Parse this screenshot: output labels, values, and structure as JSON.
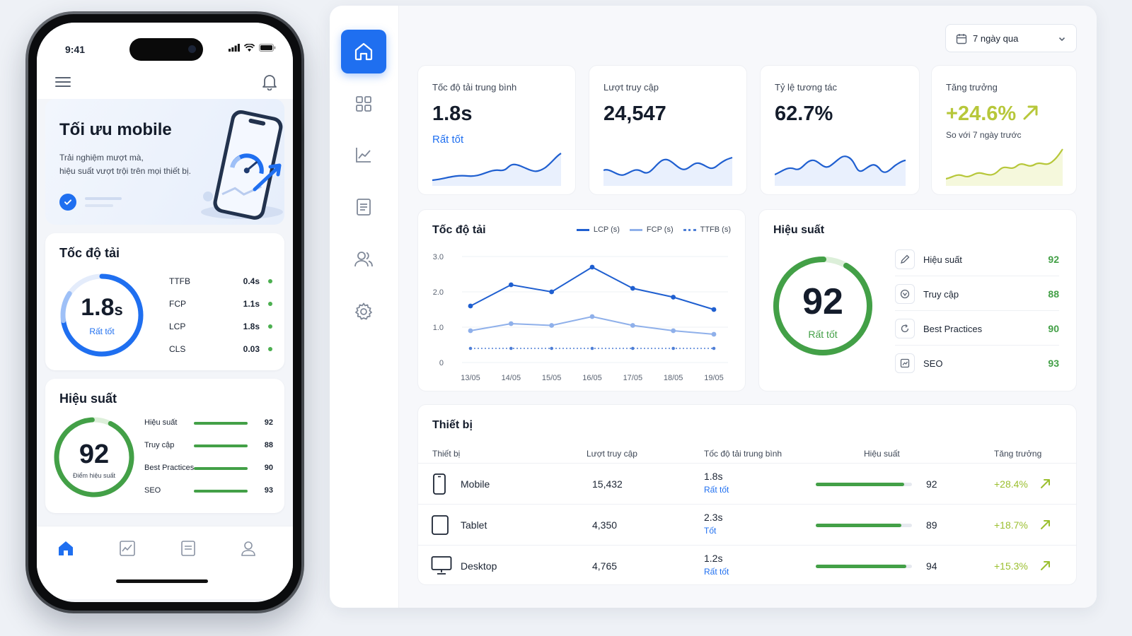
{
  "phone": {
    "status_time": "9:41",
    "hero": {
      "title": "Tối ưu mobile",
      "subtitle_line1": "Trải nghiệm mượt mà,",
      "subtitle_line2": "hiệu suất vượt trội trên mọi thiết bị."
    },
    "speed_card": {
      "title": "Tốc độ tải",
      "gauge_value": "1.8",
      "gauge_unit": "s",
      "gauge_label": "Rất tốt",
      "metrics": [
        {
          "name": "TTFB",
          "value": "0.4s"
        },
        {
          "name": "FCP",
          "value": "1.1s"
        },
        {
          "name": "LCP",
          "value": "1.8s"
        },
        {
          "name": "CLS",
          "value": "0.03"
        }
      ]
    },
    "perf_card": {
      "title": "Hiệu suất",
      "score": "92",
      "score_label": "Điểm hiệu suất",
      "items": [
        {
          "name": "Hiệu suất",
          "value": "92"
        },
        {
          "name": "Truy cập",
          "value": "88"
        },
        {
          "name": "Best Practices",
          "value": "90"
        },
        {
          "name": "SEO",
          "value": "93"
        }
      ]
    },
    "tabs": [
      "home-icon",
      "chart-icon",
      "document-icon",
      "user-icon"
    ]
  },
  "dashboard": {
    "date_filter": "7 ngày qua",
    "nav": [
      "home-icon",
      "grid-icon",
      "chart-icon",
      "document-icon",
      "users-icon",
      "settings-icon"
    ],
    "kpis": [
      {
        "label": "Tốc độ tải trung bình",
        "value": "1.8s",
        "sub": "Rất tốt"
      },
      {
        "label": "Lượt truy cập",
        "value": "24,547"
      },
      {
        "label": "Tỷ lệ tương tác",
        "value": "62.7%"
      },
      {
        "label": "Tăng trưởng",
        "value": "+24.6%",
        "note": "So với 7 ngày trước"
      }
    ],
    "speed_chart_title": "Tốc độ tải",
    "performance": {
      "title": "Hiệu suất",
      "score": "92",
      "label": "Rất tốt",
      "items": [
        {
          "name": "Hiệu suất",
          "value": "92"
        },
        {
          "name": "Truy cập",
          "value": "88"
        },
        {
          "name": "Best Practices",
          "value": "90"
        },
        {
          "name": "SEO",
          "value": "93"
        }
      ]
    },
    "devices": {
      "title": "Thiết bị",
      "headers": [
        "Thiết bị",
        "Lượt truy cập",
        "Tốc độ tải trung bình",
        "Hiệu suất",
        "Tăng trưởng"
      ],
      "rows": [
        {
          "name": "Mobile",
          "visits": "15,432",
          "speed": "1.8s",
          "rating": "Rất tốt",
          "score": "92",
          "growth": "+28.4%"
        },
        {
          "name": "Tablet",
          "visits": "4,350",
          "speed": "2.3s",
          "rating": "Tốt",
          "score": "89",
          "growth": "+18.7%"
        },
        {
          "name": "Desktop",
          "visits": "4,765",
          "speed": "1.2s",
          "rating": "Rất tốt",
          "score": "94",
          "growth": "+15.3%"
        }
      ]
    }
  },
  "colors": {
    "primary": "#1f6ff0",
    "good": "#43a047",
    "growth": "#b7c73a"
  },
  "chart_data": {
    "type": "line",
    "title": "Tốc độ tải",
    "categories": [
      "13/05",
      "14/05",
      "15/05",
      "16/05",
      "17/05",
      "18/05",
      "19/05"
    ],
    "y_ticks": [
      "0",
      "1.0",
      "2.0",
      "3.0"
    ],
    "ylim": [
      0,
      3
    ],
    "grid": true,
    "legend_position": "top-right",
    "series": [
      {
        "name": "LCP (s)",
        "values": [
          1.6,
          2.2,
          2.0,
          2.7,
          2.1,
          1.85,
          1.5
        ],
        "color": "#1f5fd0",
        "style": "solid"
      },
      {
        "name": "FCP (s)",
        "values": [
          0.9,
          1.1,
          1.05,
          1.3,
          1.05,
          0.9,
          0.8
        ],
        "color": "#8fb0ea",
        "style": "solid"
      },
      {
        "name": "TTFB (s)",
        "values": [
          0.4,
          0.4,
          0.4,
          0.4,
          0.4,
          0.4,
          0.4
        ],
        "color": "#4f7fd6",
        "style": "dotted"
      }
    ]
  }
}
